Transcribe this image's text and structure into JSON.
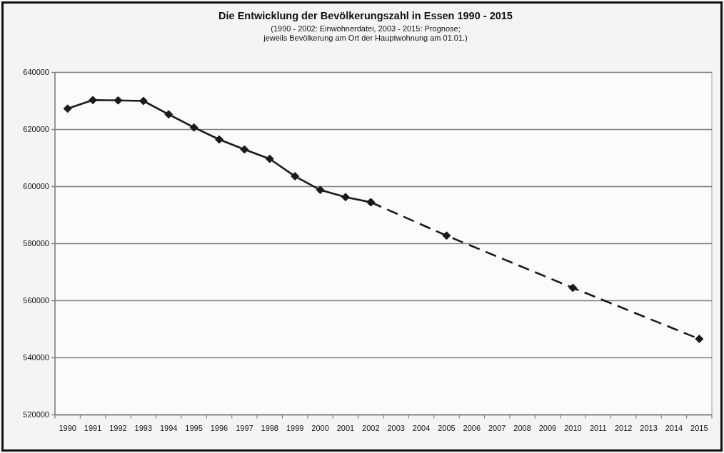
{
  "chart_data": {
    "type": "line",
    "title": "Die Entwicklung der Bevölkerungszahl in Essen 1990 - 2015",
    "subtitle": "(1990 - 2002: Einwohnerdatei, 2003 - 2015: Prognose;\njeweils Bevölkerung am Ort der Hauptwohnung am 01.01.)",
    "series": [
      {
        "color": "#1a1a1a",
        "line_style": "solid",
        "x": [
          1990,
          1991,
          1992,
          1993,
          1994,
          1995,
          1996,
          1997,
          1998,
          1999,
          2000,
          2001,
          2002
        ],
        "values": [
          627300,
          630300,
          630200,
          630000,
          625300,
          620700,
          616500,
          613000,
          609700,
          603600,
          598800,
          596300,
          594500
        ]
      },
      {
        "color": "#1a1a1a",
        "line_style": "dashed",
        "x": [
          2002,
          2005,
          2010,
          2015
        ],
        "values": [
          594500,
          582800,
          564500,
          546600
        ]
      }
    ],
    "xlim": [
      1989.5,
      2015.5
    ],
    "xticks": [
      1990,
      1991,
      1992,
      1993,
      1994,
      1995,
      1996,
      1997,
      1998,
      1999,
      2000,
      2001,
      2002,
      2003,
      2004,
      2005,
      2006,
      2007,
      2008,
      2009,
      2010,
      2011,
      2012,
      2013,
      2014,
      2015
    ],
    "ylim": [
      520000,
      640000
    ],
    "yticks": [
      520000,
      540000,
      560000,
      580000,
      600000,
      620000,
      640000
    ],
    "grid": "y",
    "marker": "diamond"
  }
}
